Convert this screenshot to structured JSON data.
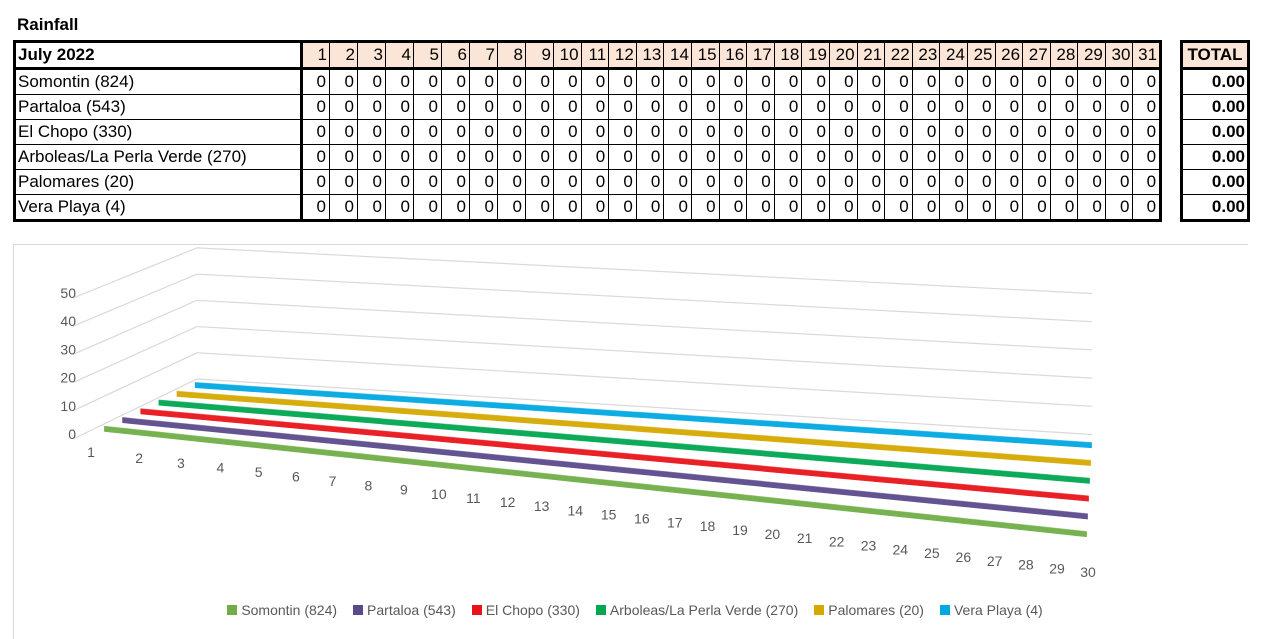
{
  "title": "Rainfall",
  "table": {
    "month_label": "July 2022",
    "days": [
      "1",
      "2",
      "3",
      "4",
      "5",
      "6",
      "7",
      "8",
      "9",
      "10",
      "11",
      "12",
      "13",
      "14",
      "15",
      "16",
      "17",
      "18",
      "19",
      "20",
      "21",
      "22",
      "23",
      "24",
      "25",
      "26",
      "27",
      "28",
      "29",
      "30",
      "31"
    ],
    "total_label": "TOTAL",
    "rows": [
      {
        "location": "Somontin (824)",
        "values": [
          "0",
          "0",
          "0",
          "0",
          "0",
          "0",
          "0",
          "0",
          "0",
          "0",
          "0",
          "0",
          "0",
          "0",
          "0",
          "0",
          "0",
          "0",
          "0",
          "0",
          "0",
          "0",
          "0",
          "0",
          "0",
          "0",
          "0",
          "0",
          "0",
          "0",
          "0"
        ],
        "total": "0.00"
      },
      {
        "location": "Partaloa (543)",
        "values": [
          "0",
          "0",
          "0",
          "0",
          "0",
          "0",
          "0",
          "0",
          "0",
          "0",
          "0",
          "0",
          "0",
          "0",
          "0",
          "0",
          "0",
          "0",
          "0",
          "0",
          "0",
          "0",
          "0",
          "0",
          "0",
          "0",
          "0",
          "0",
          "0",
          "0",
          "0"
        ],
        "total": "0.00"
      },
      {
        "location": "El Chopo (330)",
        "values": [
          "0",
          "0",
          "0",
          "0",
          "0",
          "0",
          "0",
          "0",
          "0",
          "0",
          "0",
          "0",
          "0",
          "0",
          "0",
          "0",
          "0",
          "0",
          "0",
          "0",
          "0",
          "0",
          "0",
          "0",
          "0",
          "0",
          "0",
          "0",
          "0",
          "0",
          "0"
        ],
        "total": "0.00"
      },
      {
        "location": "Arboleas/La Perla Verde (270)",
        "values": [
          "0",
          "0",
          "0",
          "0",
          "0",
          "0",
          "0",
          "0",
          "0",
          "0",
          "0",
          "0",
          "0",
          "0",
          "0",
          "0",
          "0",
          "0",
          "0",
          "0",
          "0",
          "0",
          "0",
          "0",
          "0",
          "0",
          "0",
          "0",
          "0",
          "0",
          "0"
        ],
        "total": "0.00"
      },
      {
        "location": "Palomares (20)",
        "values": [
          "0",
          "0",
          "0",
          "0",
          "0",
          "0",
          "0",
          "0",
          "0",
          "0",
          "0",
          "0",
          "0",
          "0",
          "0",
          "0",
          "0",
          "0",
          "0",
          "0",
          "0",
          "0",
          "0",
          "0",
          "0",
          "0",
          "0",
          "0",
          "0",
          "0",
          "0"
        ],
        "total": "0.00"
      },
      {
        "location": "Vera Playa (4)",
        "values": [
          "0",
          "0",
          "0",
          "0",
          "0",
          "0",
          "0",
          "0",
          "0",
          "0",
          "0",
          "0",
          "0",
          "0",
          "0",
          "0",
          "0",
          "0",
          "0",
          "0",
          "0",
          "0",
          "0",
          "0",
          "0",
          "0",
          "0",
          "0",
          "0",
          "0",
          "0"
        ],
        "total": "0.00"
      }
    ]
  },
  "chart_data": {
    "type": "bar",
    "style": "3d-ribbon",
    "categories": [
      "1",
      "2",
      "3",
      "4",
      "5",
      "6",
      "7",
      "8",
      "9",
      "10",
      "11",
      "12",
      "13",
      "14",
      "15",
      "16",
      "17",
      "18",
      "19",
      "20",
      "21",
      "22",
      "23",
      "24",
      "25",
      "26",
      "27",
      "28",
      "29",
      "30"
    ],
    "yticks": [
      "0",
      "10",
      "20",
      "30",
      "40",
      "50"
    ],
    "ylim": [
      0,
      50
    ],
    "series": [
      {
        "name": "Somontin (824)",
        "color": "#70ad47",
        "values": [
          0,
          0,
          0,
          0,
          0,
          0,
          0,
          0,
          0,
          0,
          0,
          0,
          0,
          0,
          0,
          0,
          0,
          0,
          0,
          0,
          0,
          0,
          0,
          0,
          0,
          0,
          0,
          0,
          0,
          0
        ]
      },
      {
        "name": "Partaloa (543)",
        "color": "#5b4a8b",
        "values": [
          0,
          0,
          0,
          0,
          0,
          0,
          0,
          0,
          0,
          0,
          0,
          0,
          0,
          0,
          0,
          0,
          0,
          0,
          0,
          0,
          0,
          0,
          0,
          0,
          0,
          0,
          0,
          0,
          0,
          0
        ]
      },
      {
        "name": "El Chopo (330)",
        "color": "#e8141a",
        "values": [
          0,
          0,
          0,
          0,
          0,
          0,
          0,
          0,
          0,
          0,
          0,
          0,
          0,
          0,
          0,
          0,
          0,
          0,
          0,
          0,
          0,
          0,
          0,
          0,
          0,
          0,
          0,
          0,
          0,
          0
        ]
      },
      {
        "name": "Arboleas/La Perla Verde (270)",
        "color": "#00a650",
        "values": [
          0,
          0,
          0,
          0,
          0,
          0,
          0,
          0,
          0,
          0,
          0,
          0,
          0,
          0,
          0,
          0,
          0,
          0,
          0,
          0,
          0,
          0,
          0,
          0,
          0,
          0,
          0,
          0,
          0,
          0
        ]
      },
      {
        "name": "Palomares (20)",
        "color": "#d4a900",
        "values": [
          0,
          0,
          0,
          0,
          0,
          0,
          0,
          0,
          0,
          0,
          0,
          0,
          0,
          0,
          0,
          0,
          0,
          0,
          0,
          0,
          0,
          0,
          0,
          0,
          0,
          0,
          0,
          0,
          0,
          0
        ]
      },
      {
        "name": "Vera Playa (4)",
        "color": "#00a8e1",
        "values": [
          0,
          0,
          0,
          0,
          0,
          0,
          0,
          0,
          0,
          0,
          0,
          0,
          0,
          0,
          0,
          0,
          0,
          0,
          0,
          0,
          0,
          0,
          0,
          0,
          0,
          0,
          0,
          0,
          0,
          0
        ]
      }
    ],
    "title": "",
    "xlabel": "",
    "ylabel": "",
    "legend": "bottom",
    "grid": true
  }
}
